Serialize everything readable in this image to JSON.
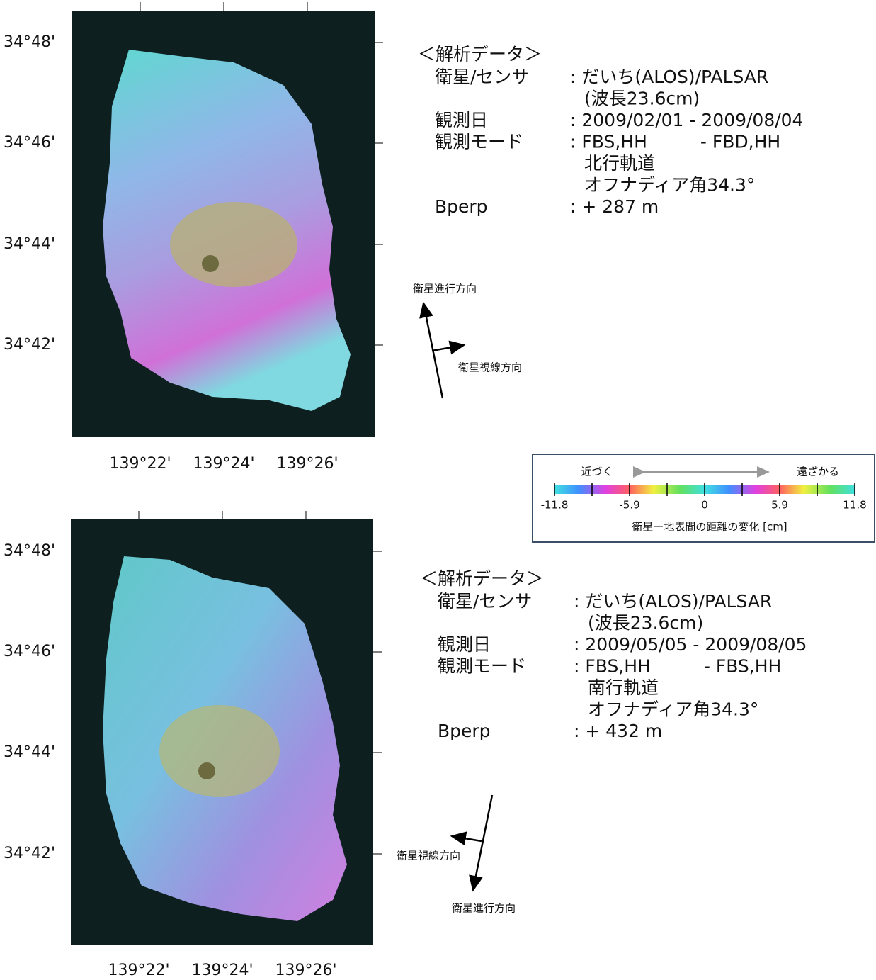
{
  "panels": [
    {
      "lat_labels": [
        "34°48'",
        "34°46'",
        "34°44'",
        "34°42'"
      ],
      "lon_labels": [
        "139°22'",
        "139°24'",
        "139°26'"
      ],
      "info": {
        "heading": "＜解析データ＞",
        "rows": [
          {
            "label": "衛星/センサ",
            "value": ": だいち(ALOS)/PALSAR",
            "more": [
              "(波長23.6cm)"
            ]
          },
          {
            "label": "観測日",
            "value": ": 2009/02/01 - 2009/08/04"
          },
          {
            "label": "観測モード",
            "value": ": FBS,HH　　　- FBD,HH",
            "more": [
              "北行軌道",
              "オフナディア角34.3°"
            ]
          },
          {
            "label": "Bperp",
            "value": ": + 287 m"
          }
        ]
      },
      "flight_direction": "衛星進行方向",
      "look_direction": "衛星視線方向"
    },
    {
      "lat_labels": [
        "34°48'",
        "34°46'",
        "34°44'",
        "34°42'"
      ],
      "lon_labels": [
        "139°22'",
        "139°24'",
        "139°26'"
      ],
      "info": {
        "heading": "＜解析データ＞",
        "rows": [
          {
            "label": "衛星/センサ",
            "value": ": だいち(ALOS)/PALSAR",
            "more": [
              "(波長23.6cm)"
            ]
          },
          {
            "label": "観測日",
            "value": ": 2009/05/05 - 2009/08/05"
          },
          {
            "label": "観測モード",
            "value": ": FBS,HH　　　- FBS,HH",
            "more": [
              "南行軌道",
              "オフナディア角34.3°"
            ]
          },
          {
            "label": "Bperp",
            "value": ": + 432 m"
          }
        ]
      },
      "flight_direction": "衛星進行方向",
      "look_direction": "衛星視線方向"
    }
  ],
  "colorbar": {
    "near": "近づく",
    "far": "遠ざかる",
    "ticks": [
      "-11.8",
      "-5.9",
      "0",
      "5.9",
      "11.8"
    ],
    "caption": "衛星ー地表間の距離の変化 [cm]"
  }
}
